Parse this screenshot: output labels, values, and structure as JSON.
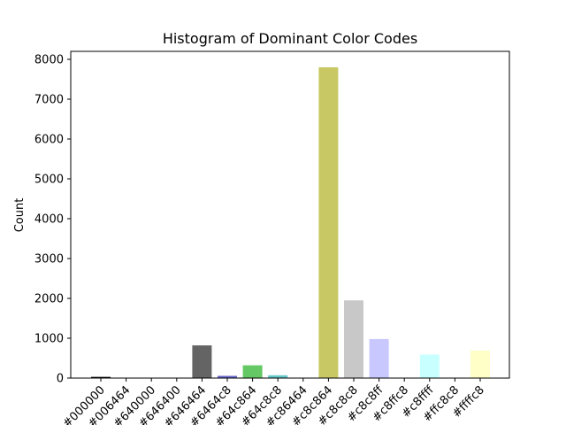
{
  "chart_data": {
    "type": "bar",
    "title": "Histogram of Dominant Color Codes",
    "xlabel": "",
    "ylabel": "Count",
    "ylim": [
      0,
      8200
    ],
    "yticks": [
      0,
      1000,
      2000,
      3000,
      4000,
      5000,
      6000,
      7000,
      8000
    ],
    "grid": false,
    "categories": [
      "#000000",
      "#006464",
      "#640000",
      "#646400",
      "#646464",
      "#6464c8",
      "#64c864",
      "#64c8c8",
      "#c86464",
      "#c8c864",
      "#c8c8c8",
      "#c8c8ff",
      "#c8ffc8",
      "#c8ffff",
      "#ffc8c8",
      "#ffffc8"
    ],
    "values": [
      30,
      5,
      5,
      5,
      820,
      55,
      320,
      70,
      5,
      7800,
      1950,
      980,
      5,
      590,
      5,
      690
    ],
    "bar_colors": [
      "#000000",
      "#006464",
      "#640000",
      "#646400",
      "#646464",
      "#6464c8",
      "#64c864",
      "#64c8c8",
      "#c86464",
      "#c8c864",
      "#c8c8c8",
      "#c8c8ff",
      "#c8ffc8",
      "#c8ffff",
      "#ffc8c8",
      "#ffffc8"
    ]
  }
}
